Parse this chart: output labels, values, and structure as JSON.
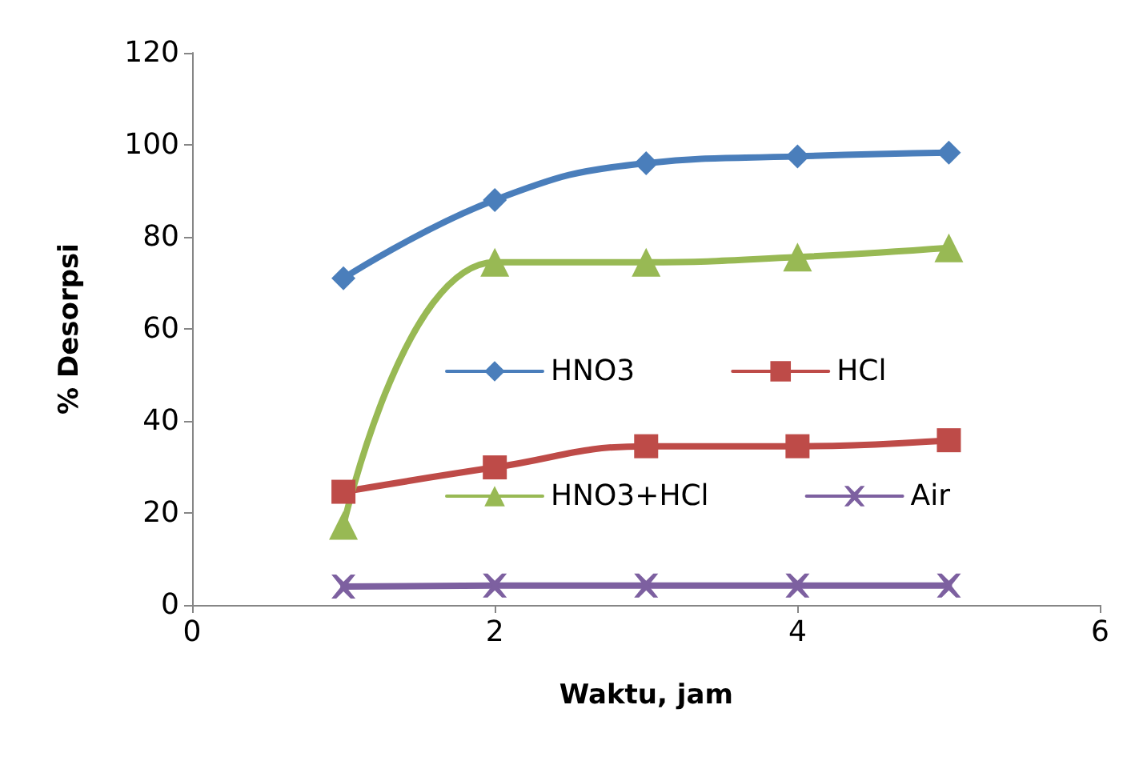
{
  "chart_data": {
    "type": "line",
    "xlabel": "Waktu, jam",
    "ylabel": "% Desorpsi",
    "x": [
      1,
      2,
      3,
      4,
      5
    ],
    "series": [
      {
        "name": "HNO3",
        "color": "#4a7ebb",
        "marker": "diamond",
        "values": [
          71,
          88,
          96,
          97.5,
          98.3
        ]
      },
      {
        "name": "HCl",
        "color": "#be4b48",
        "marker": "square",
        "values": [
          24.6,
          29.9,
          34.5,
          34.5,
          35.8
        ]
      },
      {
        "name": "HNO3+HCl",
        "color": "#98b954",
        "marker": "triangle",
        "values": [
          17.3,
          74.5,
          74.5,
          75.6,
          77.6
        ]
      },
      {
        "name": "Air",
        "color": "#7d60a0",
        "marker": "cross",
        "values": [
          4,
          4.2,
          4.2,
          4.2,
          4.2
        ]
      }
    ],
    "xlim": [
      0,
      6
    ],
    "xticks": [
      0,
      2,
      4,
      6
    ],
    "ylim": [
      0,
      120
    ],
    "yticks": [
      0,
      20,
      40,
      60,
      80,
      100,
      120
    ],
    "grid": false,
    "legend": "center",
    "line_style": "solid"
  }
}
